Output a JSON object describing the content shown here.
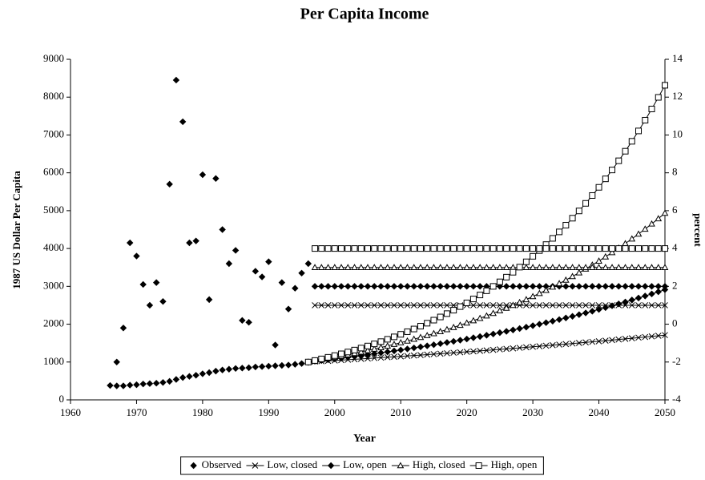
{
  "chart_data": {
    "type": "line",
    "title": "Per Capita Income",
    "xlabel": "Year",
    "ylabel": "1987 US Dollar Per Capita",
    "y2label": "percent",
    "xlim": [
      1960,
      2050
    ],
    "xticks": [
      1960,
      1970,
      1980,
      1990,
      2000,
      2010,
      2020,
      2030,
      2040,
      2050
    ],
    "ylim": [
      0,
      9000
    ],
    "yticks": [
      0,
      1000,
      2000,
      3000,
      4000,
      5000,
      6000,
      7000,
      8000,
      9000
    ],
    "y2lim": [
      -4,
      14
    ],
    "y2ticks": [
      -4,
      -2,
      0,
      2,
      4,
      6,
      8,
      10,
      12,
      14
    ],
    "grid": false,
    "legend": "bottom",
    "series": [
      {
        "name": "Observed",
        "color": "#000000",
        "marker": "diamond",
        "line": false,
        "x": [
          1966,
          1967,
          1968,
          1969,
          1970,
          1971,
          1972,
          1973,
          1974,
          1975,
          1976,
          1977,
          1978,
          1979,
          1980,
          1981,
          1982,
          1983,
          1984,
          1985,
          1986,
          1987,
          1988,
          1989,
          1990,
          1991,
          1992,
          1993,
          1994,
          1995,
          1996
        ],
        "values": [
          380,
          370,
          370,
          390,
          400,
          420,
          430,
          440,
          460,
          490,
          540,
          590,
          620,
          650,
          690,
          720,
          760,
          790,
          810,
          830,
          840,
          850,
          870,
          880,
          890,
          900,
          910,
          920,
          940,
          960,
          990
        ],
        "growth": [
          null,
          -2.0,
          -0.2,
          4.3,
          3.6,
          2.1,
          1.0,
          2.2,
          1.2,
          7.4,
          12.9,
          10.7,
          4.3,
          4.4,
          7.9,
          1.3,
          7.7,
          5.0,
          3.2,
          3.9,
          0.2,
          0.1,
          2.8,
          2.5,
          3.3,
          -1.1,
          2.2,
          0.8,
          1.9,
          2.7,
          3.2
        ]
      },
      {
        "name": "Low, closed",
        "color": "#000000",
        "marker": "x",
        "x": [
          1996,
          1997,
          1998,
          1999,
          2000,
          2001,
          2002,
          2003,
          2004,
          2005,
          2006,
          2007,
          2008,
          2009,
          2010,
          2011,
          2012,
          2013,
          2014,
          2015,
          2016,
          2017,
          2018,
          2019,
          2020,
          2021,
          2022,
          2023,
          2024,
          2025,
          2026,
          2027,
          2028,
          2029,
          2030,
          2031,
          2032,
          2033,
          2034,
          2035,
          2036,
          2037,
          2038,
          2039,
          2040,
          2041,
          2042,
          2043,
          2044,
          2045,
          2046,
          2047,
          2048,
          2049,
          2050
        ],
        "values": [
          1000,
          1010,
          1020,
          1030,
          1041,
          1051,
          1062,
          1072,
          1083,
          1094,
          1105,
          1116,
          1127,
          1138,
          1149,
          1161,
          1173,
          1184,
          1196,
          1208,
          1220,
          1232,
          1245,
          1257,
          1270,
          1282,
          1295,
          1308,
          1321,
          1335,
          1348,
          1361,
          1375,
          1389,
          1403,
          1417,
          1431,
          1445,
          1460,
          1474,
          1489,
          1504,
          1519,
          1534,
          1549,
          1565,
          1580,
          1596,
          1612,
          1628,
          1645,
          1661,
          1678,
          1694,
          1711
        ],
        "growth": [
          null,
          1,
          1,
          1,
          1,
          1,
          1,
          1,
          1,
          1,
          1,
          1,
          1,
          1,
          1,
          1,
          1,
          1,
          1,
          1,
          1,
          1,
          1,
          1,
          1,
          1,
          1,
          1,
          1,
          1,
          1,
          1,
          1,
          1,
          1,
          1,
          1,
          1,
          1,
          1,
          1,
          1,
          1,
          1,
          1,
          1,
          1,
          1,
          1,
          1,
          1,
          1,
          1,
          1,
          1
        ]
      },
      {
        "name": "Low, open",
        "color": "#000000",
        "marker": "diamond",
        "x": [
          1996,
          1997,
          1998,
          1999,
          2000,
          2001,
          2002,
          2003,
          2004,
          2005,
          2006,
          2007,
          2008,
          2009,
          2010,
          2011,
          2012,
          2013,
          2014,
          2015,
          2016,
          2017,
          2018,
          2019,
          2020,
          2021,
          2022,
          2023,
          2024,
          2025,
          2026,
          2027,
          2028,
          2029,
          2030,
          2031,
          2032,
          2033,
          2034,
          2035,
          2036,
          2037,
          2038,
          2039,
          2040,
          2041,
          2042,
          2043,
          2044,
          2045,
          2046,
          2047,
          2048,
          2049,
          2050
        ],
        "values": [
          1000,
          1020,
          1040,
          1061,
          1082,
          1104,
          1126,
          1149,
          1172,
          1195,
          1219,
          1243,
          1268,
          1294,
          1319,
          1346,
          1373,
          1400,
          1428,
          1457,
          1486,
          1516,
          1546,
          1577,
          1608,
          1641,
          1673,
          1707,
          1741,
          1776,
          1811,
          1848,
          1885,
          1922,
          1961,
          2000,
          2040,
          2081,
          2122,
          2165,
          2208,
          2252,
          2297,
          2343,
          2390,
          2438,
          2487,
          2536,
          2587,
          2639,
          2692,
          2745,
          2800,
          2856,
          2913
        ],
        "growth": [
          null,
          2,
          2,
          2,
          2,
          2,
          2,
          2,
          2,
          2,
          2,
          2,
          2,
          2,
          2,
          2,
          2,
          2,
          2,
          2,
          2,
          2,
          2,
          2,
          2,
          2,
          2,
          2,
          2,
          2,
          2,
          2,
          2,
          2,
          2,
          2,
          2,
          2,
          2,
          2,
          2,
          2,
          2,
          2,
          2,
          2,
          2,
          2,
          2,
          2,
          2,
          2,
          2,
          2,
          2
        ]
      },
      {
        "name": "High, closed",
        "color": "#000000",
        "marker": "triangle",
        "x": [
          1996,
          1997,
          1998,
          1999,
          2000,
          2001,
          2002,
          2003,
          2004,
          2005,
          2006,
          2007,
          2008,
          2009,
          2010,
          2011,
          2012,
          2013,
          2014,
          2015,
          2016,
          2017,
          2018,
          2019,
          2020,
          2021,
          2022,
          2023,
          2024,
          2025,
          2026,
          2027,
          2028,
          2029,
          2030,
          2031,
          2032,
          2033,
          2034,
          2035,
          2036,
          2037,
          2038,
          2039,
          2040,
          2041,
          2042,
          2043,
          2044,
          2045,
          2046,
          2047,
          2048,
          2049,
          2050
        ],
        "values": [
          1000,
          1030,
          1061,
          1093,
          1126,
          1159,
          1194,
          1230,
          1267,
          1305,
          1344,
          1384,
          1426,
          1469,
          1513,
          1558,
          1605,
          1653,
          1702,
          1754,
          1806,
          1860,
          1916,
          1974,
          2033,
          2094,
          2157,
          2221,
          2288,
          2357,
          2427,
          2500,
          2575,
          2652,
          2732,
          2814,
          2898,
          2985,
          3075,
          3167,
          3262,
          3360,
          3461,
          3565,
          3671,
          3782,
          3895,
          4012,
          4132,
          4256,
          4384,
          4515,
          4651,
          4790,
          4934
        ],
        "growth": [
          null,
          3,
          3,
          3,
          3,
          3,
          3,
          3,
          3,
          3,
          3,
          3,
          3,
          3,
          3,
          3,
          3,
          3,
          3,
          3,
          3,
          3,
          3,
          3,
          3,
          3,
          3,
          3,
          3,
          3,
          3,
          3,
          3,
          3,
          3,
          3,
          3,
          3,
          3,
          3,
          3,
          3,
          3,
          3,
          3,
          3,
          3,
          3,
          3,
          3,
          3,
          3,
          3,
          3,
          3
        ]
      },
      {
        "name": "High, open",
        "color": "#000000",
        "marker": "square",
        "x": [
          1996,
          1997,
          1998,
          1999,
          2000,
          2001,
          2002,
          2003,
          2004,
          2005,
          2006,
          2007,
          2008,
          2009,
          2010,
          2011,
          2012,
          2013,
          2014,
          2015,
          2016,
          2017,
          2018,
          2019,
          2020,
          2021,
          2022,
          2023,
          2024,
          2025,
          2026,
          2027,
          2028,
          2029,
          2030,
          2031,
          2032,
          2033,
          2034,
          2035,
          2036,
          2037,
          2038,
          2039,
          2040,
          2041,
          2042,
          2043,
          2044,
          2045,
          2046,
          2047,
          2048,
          2049,
          2050
        ],
        "values": [
          1000,
          1040,
          1082,
          1125,
          1170,
          1217,
          1265,
          1316,
          1369,
          1423,
          1480,
          1539,
          1601,
          1665,
          1732,
          1801,
          1873,
          1948,
          2026,
          2107,
          2191,
          2279,
          2370,
          2465,
          2563,
          2666,
          2772,
          2883,
          2999,
          3119,
          3243,
          3373,
          3508,
          3648,
          3794,
          3946,
          4104,
          4268,
          4439,
          4616,
          4801,
          4993,
          5193,
          5400,
          5617,
          5841,
          6075,
          6318,
          6571,
          6833,
          7107,
          7391,
          7687,
          7994,
          8314
        ],
        "growth": [
          null,
          4,
          4,
          4,
          4,
          4,
          4,
          4,
          4,
          4,
          4,
          4,
          4,
          4,
          4,
          4,
          4,
          4,
          4,
          4,
          4,
          4,
          4,
          4,
          4,
          4,
          4,
          4,
          4,
          4,
          4,
          4,
          4,
          4,
          4,
          4,
          4,
          4,
          4,
          4,
          4,
          4,
          4,
          4,
          4,
          4,
          4,
          4,
          4,
          4,
          4,
          4,
          4,
          4,
          4
        ]
      }
    ]
  }
}
